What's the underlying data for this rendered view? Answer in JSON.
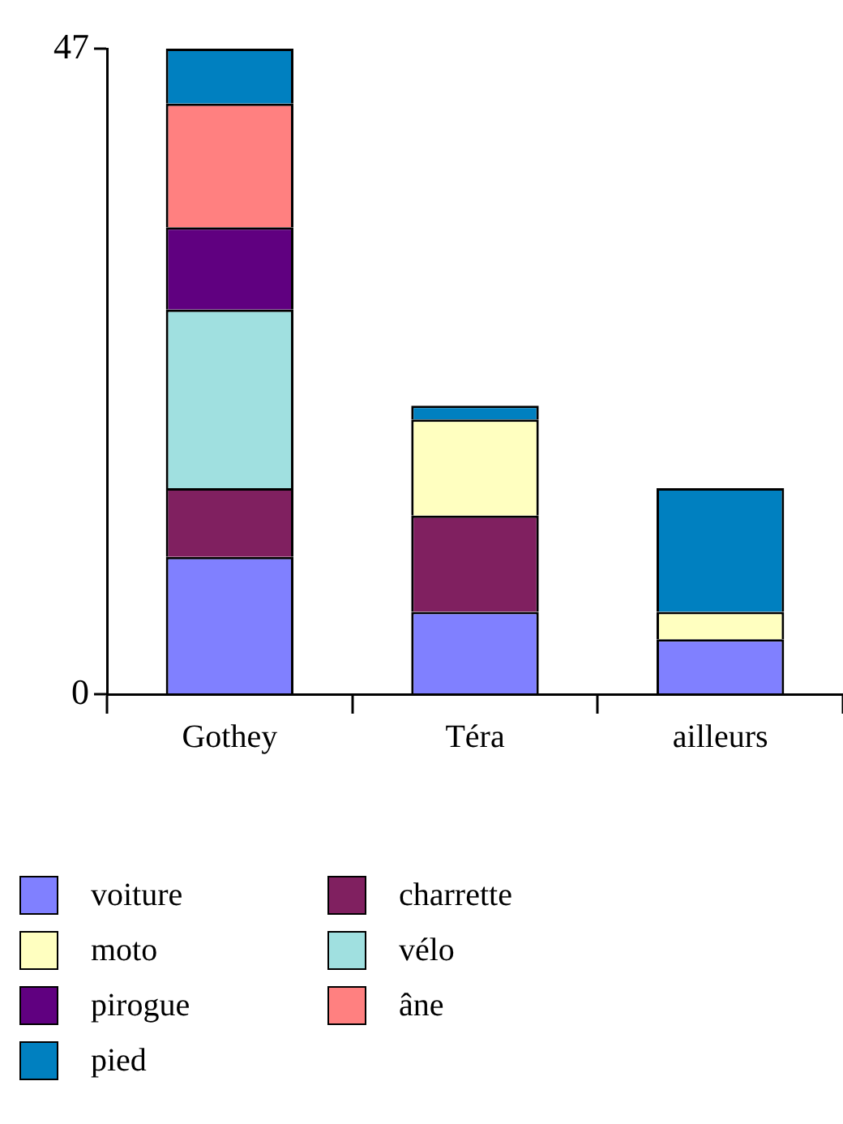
{
  "chart_data": {
    "type": "bar",
    "stacked": true,
    "categories": [
      "Gothey",
      "Téra",
      "ailleurs"
    ],
    "series": [
      {
        "name": "voiture",
        "color": "#8080ff",
        "values": [
          10,
          6,
          4
        ]
      },
      {
        "name": "charrette",
        "color": "#802060",
        "values": [
          5,
          7,
          null
        ]
      },
      {
        "name": "moto",
        "color": "#ffffc0",
        "values": [
          null,
          7,
          2
        ]
      },
      {
        "name": "vélo",
        "color": "#a0e0e0",
        "values": [
          13,
          null,
          null
        ]
      },
      {
        "name": "pirogue",
        "color": "#600080",
        "values": [
          6,
          null,
          null
        ]
      },
      {
        "name": "âne",
        "color": "#ff8080",
        "values": [
          9,
          null,
          null
        ]
      },
      {
        "name": "pied",
        "color": "#0080c0",
        "values": [
          4,
          1,
          9
        ]
      }
    ],
    "ylim": [
      0,
      47
    ],
    "yticks": [
      0,
      47
    ],
    "grid": false,
    "legend": "bottom"
  }
}
